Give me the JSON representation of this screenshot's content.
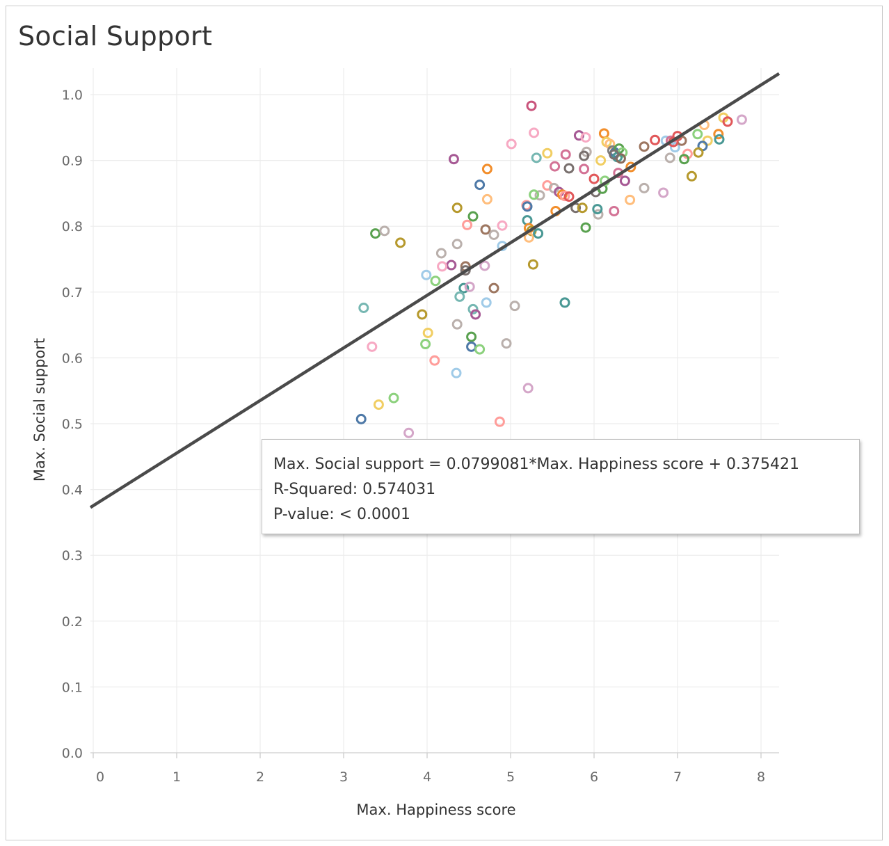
{
  "chart_data": {
    "type": "scatter",
    "title": "Social Support",
    "xlabel": "Max. Happiness score",
    "ylabel": "Max. Social support",
    "xlim": [
      -0.1,
      8.2
    ],
    "ylim": [
      0.0,
      1.05
    ],
    "x_ticks": [
      "0",
      "1",
      "2",
      "3",
      "4",
      "5",
      "6",
      "7",
      "8"
    ],
    "y_ticks": [
      "0.0",
      "0.1",
      "0.2",
      "0.3",
      "0.4",
      "0.5",
      "0.6",
      "0.7",
      "0.8",
      "0.9",
      "1.0"
    ],
    "grid": true,
    "trend_line": {
      "slope": 0.0799081,
      "intercept": 0.375421,
      "color": "#4a4a4a"
    },
    "tooltip": {
      "equation": "Max. Social support = 0.0799081*Max. Happiness score + 0.375421",
      "r_squared": "R-Squared: 0.574031",
      "p_value": "P-value: < 0.0001"
    },
    "points": [
      {
        "x": 5.25,
        "y": 0.983,
        "color": "#c9547c"
      },
      {
        "x": 5.28,
        "y": 0.942,
        "color": "#f7a9c3"
      },
      {
        "x": 5.82,
        "y": 0.938,
        "color": "#a65994"
      },
      {
        "x": 5.9,
        "y": 0.935,
        "color": "#f7a9c3"
      },
      {
        "x": 6.12,
        "y": 0.941,
        "color": "#f28e2b"
      },
      {
        "x": 6.15,
        "y": 0.928,
        "color": "#f1ce63"
      },
      {
        "x": 6.19,
        "y": 0.925,
        "color": "#ffbe7d"
      },
      {
        "x": 6.22,
        "y": 0.915,
        "color": "#7f7f7f"
      },
      {
        "x": 6.25,
        "y": 0.912,
        "color": "#4e79a7"
      },
      {
        "x": 6.3,
        "y": 0.918,
        "color": "#59a14f"
      },
      {
        "x": 6.34,
        "y": 0.912,
        "color": "#8cd17d"
      },
      {
        "x": 6.28,
        "y": 0.905,
        "color": "#499894"
      },
      {
        "x": 6.32,
        "y": 0.903,
        "color": "#8a6a5b"
      },
      {
        "x": 6.24,
        "y": 0.909,
        "color": "#79706e"
      },
      {
        "x": 6.6,
        "y": 0.921,
        "color": "#9d7660"
      },
      {
        "x": 6.73,
        "y": 0.931,
        "color": "#e15759"
      },
      {
        "x": 6.86,
        "y": 0.93,
        "color": "#a0cbe8"
      },
      {
        "x": 6.92,
        "y": 0.93,
        "color": "#d37295"
      },
      {
        "x": 6.97,
        "y": 0.92,
        "color": "#a0cbe8"
      },
      {
        "x": 7.0,
        "y": 0.937,
        "color": "#e15759"
      },
      {
        "x": 7.05,
        "y": 0.93,
        "color": "#9d7660"
      },
      {
        "x": 6.95,
        "y": 0.928,
        "color": "#e15759"
      },
      {
        "x": 7.24,
        "y": 0.94,
        "color": "#8cd17d"
      },
      {
        "x": 7.32,
        "y": 0.954,
        "color": "#ffbe7d"
      },
      {
        "x": 7.36,
        "y": 0.93,
        "color": "#f1ce63"
      },
      {
        "x": 7.3,
        "y": 0.922,
        "color": "#4e79a7"
      },
      {
        "x": 7.49,
        "y": 0.94,
        "color": "#f28e2b"
      },
      {
        "x": 7.5,
        "y": 0.932,
        "color": "#499894"
      },
      {
        "x": 7.55,
        "y": 0.965,
        "color": "#f1ce63"
      },
      {
        "x": 7.6,
        "y": 0.959,
        "color": "#e15759"
      },
      {
        "x": 7.77,
        "y": 0.962,
        "color": "#d4a6c8"
      },
      {
        "x": 7.12,
        "y": 0.91,
        "color": "#ff9d9a"
      },
      {
        "x": 7.25,
        "y": 0.912,
        "color": "#b6992d"
      },
      {
        "x": 7.08,
        "y": 0.902,
        "color": "#59a14f"
      },
      {
        "x": 6.91,
        "y": 0.904,
        "color": "#bab0ac"
      },
      {
        "x": 7.17,
        "y": 0.876,
        "color": "#b6992d"
      },
      {
        "x": 6.83,
        "y": 0.851,
        "color": "#d4a6c8"
      },
      {
        "x": 6.6,
        "y": 0.858,
        "color": "#bab0ac"
      },
      {
        "x": 6.43,
        "y": 0.84,
        "color": "#ffbe7d"
      },
      {
        "x": 6.44,
        "y": 0.89,
        "color": "#f28e2b"
      },
      {
        "x": 6.37,
        "y": 0.869,
        "color": "#a65994"
      },
      {
        "x": 6.29,
        "y": 0.881,
        "color": "#d37295"
      },
      {
        "x": 6.24,
        "y": 0.823,
        "color": "#d37295"
      },
      {
        "x": 6.05,
        "y": 0.818,
        "color": "#bab0ac"
      },
      {
        "x": 6.04,
        "y": 0.826,
        "color": "#499894"
      },
      {
        "x": 6.02,
        "y": 0.852,
        "color": "#79706e"
      },
      {
        "x": 6.1,
        "y": 0.857,
        "color": "#59a14f"
      },
      {
        "x": 6.13,
        "y": 0.869,
        "color": "#8cd17d"
      },
      {
        "x": 6.0,
        "y": 0.872,
        "color": "#e15759"
      },
      {
        "x": 6.08,
        "y": 0.9,
        "color": "#f1ce63"
      },
      {
        "x": 5.91,
        "y": 0.913,
        "color": "#bab0ac"
      },
      {
        "x": 5.88,
        "y": 0.907,
        "color": "#79706e"
      },
      {
        "x": 5.88,
        "y": 0.887,
        "color": "#d37295"
      },
      {
        "x": 5.7,
        "y": 0.888,
        "color": "#79706e"
      },
      {
        "x": 5.66,
        "y": 0.909,
        "color": "#d37295"
      },
      {
        "x": 5.53,
        "y": 0.891,
        "color": "#d37295"
      },
      {
        "x": 5.44,
        "y": 0.911,
        "color": "#f1ce63"
      },
      {
        "x": 5.31,
        "y": 0.904,
        "color": "#76b7b2"
      },
      {
        "x": 5.44,
        "y": 0.862,
        "color": "#ff9d9a"
      },
      {
        "x": 5.52,
        "y": 0.858,
        "color": "#bab0ac"
      },
      {
        "x": 5.58,
        "y": 0.852,
        "color": "#a65994"
      },
      {
        "x": 5.62,
        "y": 0.848,
        "color": "#f28e2b"
      },
      {
        "x": 5.65,
        "y": 0.846,
        "color": "#ff9d9a"
      },
      {
        "x": 5.7,
        "y": 0.845,
        "color": "#e15759"
      },
      {
        "x": 5.35,
        "y": 0.847,
        "color": "#bab0ac"
      },
      {
        "x": 5.28,
        "y": 0.848,
        "color": "#8cd17d"
      },
      {
        "x": 5.78,
        "y": 0.828,
        "color": "#79706e"
      },
      {
        "x": 5.86,
        "y": 0.828,
        "color": "#b6992d"
      },
      {
        "x": 5.54,
        "y": 0.823,
        "color": "#f28e2b"
      },
      {
        "x": 5.19,
        "y": 0.832,
        "color": "#ff9d9a"
      },
      {
        "x": 5.2,
        "y": 0.83,
        "color": "#4e79a7"
      },
      {
        "x": 5.2,
        "y": 0.809,
        "color": "#499894"
      },
      {
        "x": 5.22,
        "y": 0.797,
        "color": "#f28e2b"
      },
      {
        "x": 5.25,
        "y": 0.793,
        "color": "#b6992d"
      },
      {
        "x": 5.22,
        "y": 0.783,
        "color": "#ffbe7d"
      },
      {
        "x": 5.33,
        "y": 0.789,
        "color": "#499894"
      },
      {
        "x": 5.9,
        "y": 0.798,
        "color": "#59a14f"
      },
      {
        "x": 4.72,
        "y": 0.887,
        "color": "#f28e2b"
      },
      {
        "x": 4.63,
        "y": 0.863,
        "color": "#4e79a7"
      },
      {
        "x": 4.72,
        "y": 0.841,
        "color": "#ffbe7d"
      },
      {
        "x": 4.55,
        "y": 0.815,
        "color": "#59a14f"
      },
      {
        "x": 4.36,
        "y": 0.828,
        "color": "#b6992d"
      },
      {
        "x": 4.32,
        "y": 0.902,
        "color": "#a65994"
      },
      {
        "x": 4.48,
        "y": 0.802,
        "color": "#ff9d9a"
      },
      {
        "x": 4.7,
        "y": 0.795,
        "color": "#9d7660"
      },
      {
        "x": 4.8,
        "y": 0.787,
        "color": "#bab0ac"
      },
      {
        "x": 4.9,
        "y": 0.801,
        "color": "#f7a9c3"
      },
      {
        "x": 5.01,
        "y": 0.925,
        "color": "#f7a9c3"
      },
      {
        "x": 4.9,
        "y": 0.77,
        "color": "#a0cbe8"
      },
      {
        "x": 4.36,
        "y": 0.773,
        "color": "#bab0ac"
      },
      {
        "x": 4.17,
        "y": 0.759,
        "color": "#bab0ac"
      },
      {
        "x": 4.29,
        "y": 0.741,
        "color": "#a65994"
      },
      {
        "x": 4.18,
        "y": 0.739,
        "color": "#f7a9c3"
      },
      {
        "x": 4.46,
        "y": 0.739,
        "color": "#9d7660"
      },
      {
        "x": 4.46,
        "y": 0.733,
        "color": "#79706e"
      },
      {
        "x": 4.69,
        "y": 0.74,
        "color": "#d4a6c8"
      },
      {
        "x": 3.68,
        "y": 0.775,
        "color": "#b6992d"
      },
      {
        "x": 3.38,
        "y": 0.789,
        "color": "#59a14f"
      },
      {
        "x": 3.49,
        "y": 0.793,
        "color": "#bab0ac"
      },
      {
        "x": 3.99,
        "y": 0.726,
        "color": "#a0cbe8"
      },
      {
        "x": 4.1,
        "y": 0.717,
        "color": "#8cd17d"
      },
      {
        "x": 4.44,
        "y": 0.706,
        "color": "#499894"
      },
      {
        "x": 4.51,
        "y": 0.708,
        "color": "#d4a6c8"
      },
      {
        "x": 4.39,
        "y": 0.693,
        "color": "#76b7b2"
      },
      {
        "x": 4.8,
        "y": 0.706,
        "color": "#9d7660"
      },
      {
        "x": 4.71,
        "y": 0.684,
        "color": "#a0cbe8"
      },
      {
        "x": 4.55,
        "y": 0.674,
        "color": "#76b7b2"
      },
      {
        "x": 4.58,
        "y": 0.666,
        "color": "#a65994"
      },
      {
        "x": 5.05,
        "y": 0.679,
        "color": "#bab0ac"
      },
      {
        "x": 5.27,
        "y": 0.742,
        "color": "#b6992d"
      },
      {
        "x": 5.65,
        "y": 0.684,
        "color": "#499894"
      },
      {
        "x": 3.24,
        "y": 0.676,
        "color": "#76b7b2"
      },
      {
        "x": 3.94,
        "y": 0.666,
        "color": "#b6992d"
      },
      {
        "x": 4.01,
        "y": 0.638,
        "color": "#f1ce63"
      },
      {
        "x": 3.98,
        "y": 0.621,
        "color": "#8cd17d"
      },
      {
        "x": 4.36,
        "y": 0.651,
        "color": "#bab0ac"
      },
      {
        "x": 4.53,
        "y": 0.632,
        "color": "#59a14f"
      },
      {
        "x": 4.53,
        "y": 0.617,
        "color": "#4e79a7"
      },
      {
        "x": 4.63,
        "y": 0.613,
        "color": "#8cd17d"
      },
      {
        "x": 4.95,
        "y": 0.622,
        "color": "#bab0ac"
      },
      {
        "x": 3.34,
        "y": 0.617,
        "color": "#f7a9c3"
      },
      {
        "x": 4.09,
        "y": 0.596,
        "color": "#ff9d9a"
      },
      {
        "x": 4.35,
        "y": 0.577,
        "color": "#a0cbe8"
      },
      {
        "x": 5.21,
        "y": 0.554,
        "color": "#d4a6c8"
      },
      {
        "x": 3.6,
        "y": 0.539,
        "color": "#8cd17d"
      },
      {
        "x": 3.42,
        "y": 0.529,
        "color": "#f1ce63"
      },
      {
        "x": 3.21,
        "y": 0.507,
        "color": "#4e79a7"
      },
      {
        "x": 4.87,
        "y": 0.503,
        "color": "#ff9d9a"
      },
      {
        "x": 3.78,
        "y": 0.486,
        "color": "#d4a6c8"
      }
    ]
  }
}
